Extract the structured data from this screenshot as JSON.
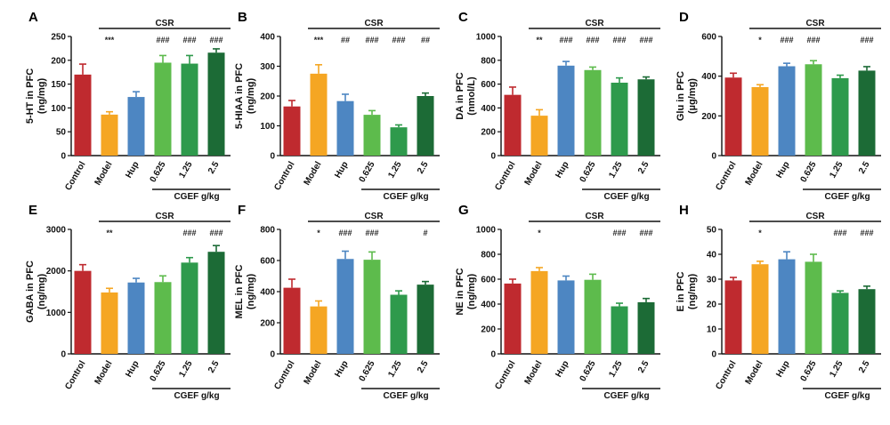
{
  "colors": [
    "#bf2a2f",
    "#f5a623",
    "#4d86c2",
    "#5dbb4c",
    "#2e9a4c",
    "#1c6b36"
  ],
  "group_label": "CSR",
  "dose_label": "CGEF g/kg",
  "chart_data": [
    {
      "type": "bar",
      "panel": "A",
      "ylabel": [
        "5-HT in PFC",
        "(ng/mg)"
      ],
      "categories": [
        "Control",
        "Model",
        "Hup",
        "0.625",
        "1.25",
        "2.5"
      ],
      "values": [
        170,
        86,
        123,
        195,
        193,
        216
      ],
      "errors": [
        22,
        6,
        11,
        15,
        17,
        8
      ],
      "ylim": [
        0,
        250
      ],
      "yticks": [
        0,
        50,
        100,
        150,
        200,
        250
      ],
      "annotations": [
        "",
        "***",
        "",
        "###",
        "###",
        "###"
      ]
    },
    {
      "type": "bar",
      "panel": "B",
      "ylabel": [
        "5-HIAA in PFC",
        "(ng/mg)"
      ],
      "categories": [
        "Control",
        "Model",
        "Hup",
        "0.625",
        "1.25",
        "2.5"
      ],
      "values": [
        165,
        275,
        183,
        137,
        95,
        200
      ],
      "errors": [
        20,
        30,
        23,
        14,
        8,
        10
      ],
      "ylim": [
        0,
        400
      ],
      "yticks": [
        0,
        100,
        200,
        300,
        400
      ],
      "annotations": [
        "",
        "***",
        "##",
        "###",
        "###",
        "##"
      ]
    },
    {
      "type": "bar",
      "panel": "C",
      "ylabel": [
        "DA in PFC",
        "(nmol/L)"
      ],
      "categories": [
        "Control",
        "Model",
        "Hup",
        "0.625",
        "1.25",
        "2.5"
      ],
      "values": [
        510,
        335,
        755,
        718,
        612,
        640
      ],
      "errors": [
        65,
        50,
        35,
        25,
        40,
        20
      ],
      "ylim": [
        0,
        1000
      ],
      "yticks": [
        0,
        200,
        400,
        600,
        800,
        1000
      ],
      "annotations": [
        "",
        "**",
        "###",
        "###",
        "###",
        "###"
      ]
    },
    {
      "type": "bar",
      "panel": "D",
      "ylabel": [
        "Glu in PFC",
        "(µg/mg)"
      ],
      "categories": [
        "Control",
        "Model",
        "Hup",
        "0.625",
        "1.25",
        "2.5"
      ],
      "values": [
        393,
        345,
        450,
        460,
        390,
        428
      ],
      "errors": [
        22,
        12,
        15,
        18,
        15,
        20
      ],
      "ylim": [
        0,
        600
      ],
      "yticks": [
        0,
        200,
        400,
        600
      ],
      "annotations": [
        "",
        "*",
        "###",
        "###",
        "",
        "###"
      ]
    },
    {
      "type": "bar",
      "panel": "E",
      "ylabel": [
        "GABA in PFC",
        "(ng/mg)"
      ],
      "categories": [
        "Control",
        "Model",
        "Hup",
        "0.625",
        "1.25",
        "2.5"
      ],
      "values": [
        2000,
        1480,
        1720,
        1730,
        2200,
        2460
      ],
      "errors": [
        150,
        100,
        100,
        150,
        120,
        150
      ],
      "ylim": [
        0,
        3000
      ],
      "yticks": [
        0,
        1000,
        2000,
        3000
      ],
      "annotations": [
        "",
        "**",
        "",
        "",
        "###",
        "###"
      ]
    },
    {
      "type": "bar",
      "panel": "F",
      "ylabel": [
        "MEL in PFC",
        "(ng/mg)"
      ],
      "categories": [
        "Control",
        "Model",
        "Hup",
        "0.625",
        "1.25",
        "2.5"
      ],
      "values": [
        425,
        305,
        610,
        605,
        380,
        445
      ],
      "errors": [
        55,
        35,
        50,
        50,
        25,
        20
      ],
      "ylim": [
        0,
        800
      ],
      "yticks": [
        0,
        200,
        400,
        600,
        800
      ],
      "annotations": [
        "",
        "*",
        "###",
        "###",
        "",
        "#"
      ]
    },
    {
      "type": "bar",
      "panel": "G",
      "ylabel": [
        "NE in PFC",
        "(ng/mg)"
      ],
      "categories": [
        "Control",
        "Model",
        "Hup",
        "0.625",
        "1.25",
        "2.5"
      ],
      "values": [
        565,
        665,
        590,
        595,
        382,
        415
      ],
      "errors": [
        35,
        28,
        35,
        45,
        25,
        30
      ],
      "ylim": [
        0,
        1000
      ],
      "yticks": [
        0,
        200,
        400,
        600,
        800,
        1000
      ],
      "annotations": [
        "",
        "*",
        "",
        "",
        "###",
        "###"
      ]
    },
    {
      "type": "bar",
      "panel": "H",
      "ylabel": [
        "E in PFC",
        "(ng/mg)"
      ],
      "categories": [
        "Control",
        "Model",
        "Hup",
        "0.625",
        "1.25",
        "2.5"
      ],
      "values": [
        29.5,
        36,
        38,
        37,
        24.5,
        26
      ],
      "errors": [
        1.2,
        1.2,
        3,
        3,
        0.8,
        1.2
      ],
      "ylim": [
        0,
        50
      ],
      "yticks": [
        0,
        10,
        20,
        30,
        40,
        50
      ],
      "annotations": [
        "",
        "*",
        "",
        "",
        "###",
        "###"
      ]
    }
  ]
}
